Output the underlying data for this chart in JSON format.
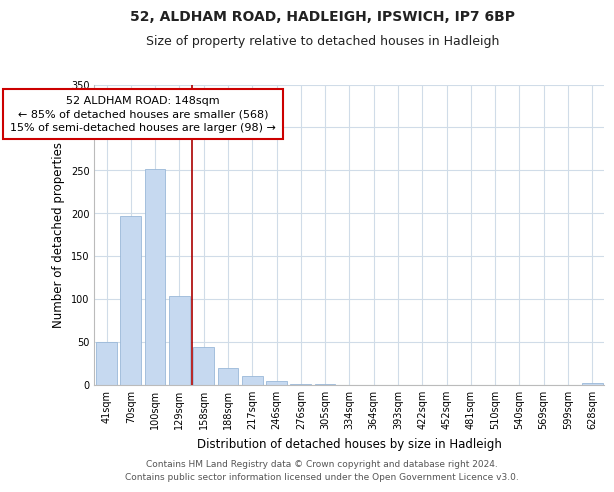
{
  "title": "52, ALDHAM ROAD, HADLEIGH, IPSWICH, IP7 6BP",
  "subtitle": "Size of property relative to detached houses in Hadleigh",
  "xlabel": "Distribution of detached houses by size in Hadleigh",
  "ylabel": "Number of detached properties",
  "bar_labels": [
    "41sqm",
    "70sqm",
    "100sqm",
    "129sqm",
    "158sqm",
    "188sqm",
    "217sqm",
    "246sqm",
    "276sqm",
    "305sqm",
    "334sqm",
    "364sqm",
    "393sqm",
    "422sqm",
    "452sqm",
    "481sqm",
    "510sqm",
    "540sqm",
    "569sqm",
    "599sqm",
    "628sqm"
  ],
  "bar_values": [
    50,
    197,
    252,
    103,
    44,
    19,
    10,
    4,
    1,
    1,
    0,
    0,
    0,
    0,
    0,
    0,
    0,
    0,
    0,
    0,
    2
  ],
  "bar_color": "#c6d9f0",
  "bar_edge_color": "#9ab8d8",
  "highlight_line_color": "#aa0000",
  "annotation_line1": "52 ALDHAM ROAD: 148sqm",
  "annotation_line2": "← 85% of detached houses are smaller (568)",
  "annotation_line3": "15% of semi-detached houses are larger (98) →",
  "annotation_box_color": "#ffffff",
  "annotation_box_edge": "#cc0000",
  "ylim": [
    0,
    350
  ],
  "yticks": [
    0,
    50,
    100,
    150,
    200,
    250,
    300,
    350
  ],
  "footer_line1": "Contains HM Land Registry data © Crown copyright and database right 2024.",
  "footer_line2": "Contains public sector information licensed under the Open Government Licence v3.0.",
  "bg_color": "#ffffff",
  "grid_color": "#d0dce8",
  "title_fontsize": 10,
  "subtitle_fontsize": 9,
  "axis_label_fontsize": 8.5,
  "tick_fontsize": 7,
  "annotation_fontsize": 8,
  "footer_fontsize": 6.5
}
